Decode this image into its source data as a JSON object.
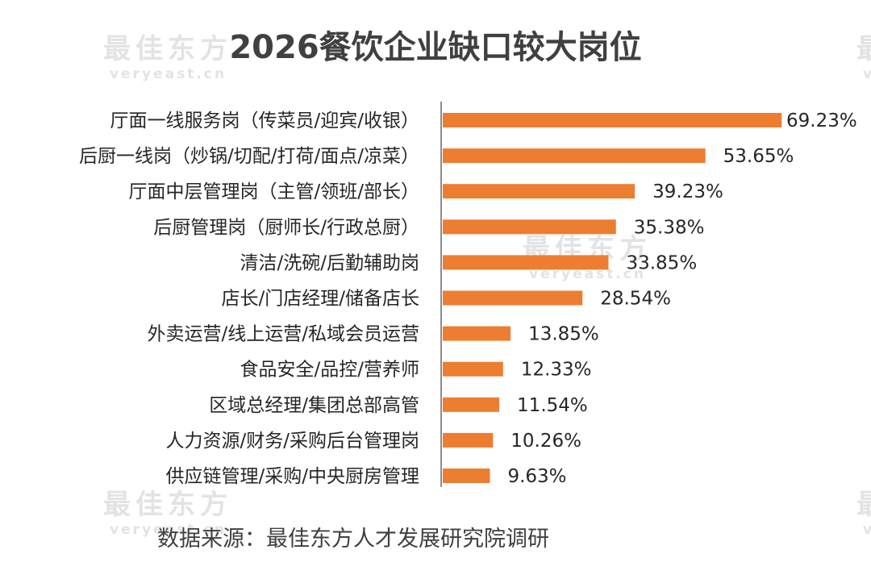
{
  "watermark": {
    "brand_cn": "最佳东方",
    "brand_en": "veryeast.cn"
  },
  "chart_data": {
    "type": "bar",
    "orientation": "horizontal",
    "title": "2026餐饮企业缺口较大岗位",
    "source_note": "数据来源：最佳东方人才发展研究院调研",
    "bar_color": "#ED7D31",
    "value_unit": "%",
    "xlim": [
      0,
      70
    ],
    "grid": false,
    "categories": [
      "厅面一线服务岗（传菜员/迎宾/收银）",
      "后厨一线岗（炒锅/切配/打荷/面点/凉菜）",
      "厅面中层管理岗（主管/领班/部长）",
      "后厨管理岗（厨师长/行政总厨）",
      "清洁/洗碗/后勤辅助岗",
      "店长/门店经理/储备店长",
      "外卖运营/线上运营/私域会员运营",
      "食品安全/品控/营养师",
      "区域总经理/集团总部高管",
      "人力资源/财务/采购后台管理岗",
      "供应链管理/采购/中央厨房管理"
    ],
    "values": [
      69.23,
      53.65,
      39.23,
      35.38,
      33.85,
      28.54,
      13.85,
      12.33,
      11.54,
      10.26,
      9.63
    ],
    "labels": [
      "69.23%",
      "53.65%",
      "39.23%",
      "35.38%",
      "33.85%",
      "28.54%",
      "13.85%",
      "12.33%",
      "11.54%",
      "10.26%",
      "9.63%"
    ]
  }
}
